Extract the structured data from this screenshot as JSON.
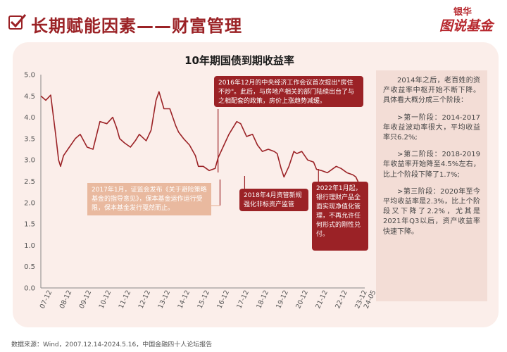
{
  "header": {
    "title": "长期赋能因素——财富管理",
    "logo_line1": "银华",
    "logo_line2": "图说基金"
  },
  "colors": {
    "accent": "#9b2226",
    "line": "#9b2226",
    "panel": "#fbeeea",
    "annotation_light": "#e9b99f"
  },
  "chart_data": {
    "type": "line",
    "title": "10年期国债到期收益率",
    "xlabel": "",
    "ylabel": "",
    "ylim": [
      0,
      5.0
    ],
    "yticks": [
      "0.0",
      "0.5",
      "1.0",
      "1.5",
      "2.0",
      "2.5",
      "3.0",
      "3.5",
      "4.0",
      "4.5",
      "5.0"
    ],
    "xticks": [
      "07-12",
      "08-12",
      "09-12",
      "10-12",
      "11-12",
      "12-12",
      "13-12",
      "14-12",
      "15-12",
      "16-12",
      "17-12",
      "18-12",
      "19-12",
      "20-12",
      "21-12",
      "22-12",
      "23-12",
      "24-05"
    ],
    "grid": false,
    "series": [
      {
        "x": [
          2007.95,
          2008.2,
          2008.45,
          2008.7,
          2008.85,
          2008.95,
          2009.1,
          2009.4,
          2009.7,
          2009.95,
          2010.3,
          2010.6,
          2010.95,
          2011.3,
          2011.6,
          2011.8,
          2011.95,
          2012.2,
          2012.5,
          2012.75,
          2012.95,
          2013.3,
          2013.55,
          2013.8,
          2013.95,
          2014.2,
          2014.5,
          2014.8,
          2014.95,
          2015.2,
          2015.5,
          2015.8,
          2015.95,
          2016.2,
          2016.5,
          2016.8,
          2016.95,
          2017.2,
          2017.5,
          2017.7,
          2017.9,
          2018.1,
          2018.4,
          2018.7,
          2018.95,
          2019.2,
          2019.5,
          2019.8,
          2019.95,
          2020.15,
          2020.3,
          2020.55,
          2020.8,
          2020.95,
          2021.2,
          2021.5,
          2021.8,
          2021.95,
          2022.2,
          2022.5,
          2022.8,
          2022.95,
          2023.2,
          2023.5,
          2023.8,
          2023.95,
          2024.2,
          2024.4
        ],
        "values": [
          4.5,
          4.4,
          4.52,
          3.6,
          3.0,
          2.85,
          3.1,
          3.3,
          3.5,
          3.6,
          3.3,
          3.25,
          3.9,
          3.85,
          4.0,
          3.75,
          3.5,
          3.4,
          3.3,
          3.45,
          3.6,
          3.45,
          3.7,
          4.4,
          4.6,
          4.2,
          4.2,
          3.8,
          3.65,
          3.5,
          3.35,
          3.1,
          2.85,
          2.85,
          2.75,
          2.8,
          3.05,
          3.3,
          3.6,
          3.75,
          3.9,
          3.85,
          3.55,
          3.6,
          3.35,
          3.2,
          3.25,
          3.2,
          3.15,
          2.8,
          2.6,
          2.85,
          3.2,
          3.15,
          3.2,
          3.0,
          2.95,
          2.78,
          2.75,
          2.7,
          2.8,
          2.85,
          2.8,
          2.7,
          2.65,
          2.6,
          2.35,
          2.3
        ]
      }
    ],
    "annotations": {
      "a2016": "2016年12月的中央经济工作会议首次提出\"房住不炒\"。此后，与房地产相关的部门陆续出台了与之相配套的政策，房价上涨趋势减缓。",
      "a2017": "2017年1月，证监会发布《关于避险策略基金的指导意见》，保本基金运作运行受限，保本基金发行戛然而止。",
      "a2018": "2018年4月资管新规强化非标资产监管",
      "a2022": "2022年1月起，银行理财产品全面实现净值化管理，不再允许任何形式的刚性兑付。"
    }
  },
  "side_text": {
    "p1": "2014年之后，老百姓的资产收益率中枢开始不断下降。具体看大概分成三个阶段：",
    "p2": ">第一阶段：2014-2017年收益波动率很大，平均收益率只6.2%;",
    "p3": ">第二阶段：2018-2019年收益率开始降至4.5%左右，比上个阶段下降了1.7%;",
    "p4": ">第三阶段：2020年至今平均收益率是2.3%，比上个阶段又下降了2.2%，尤其是2021年Q3以后，资产收益率快速下降。"
  },
  "footer": {
    "source": "数据来源：Wind，2007.12.14-2024.5.16，中国金融四十人论坛报告"
  }
}
